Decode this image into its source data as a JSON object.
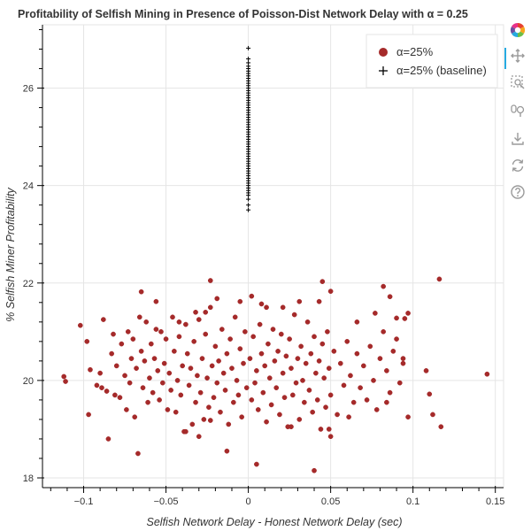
{
  "chart_data": {
    "type": "scatter",
    "title": "Profitability of Selfish Mining in Presence of Poisson-Dist Network Delay with α = 0.25",
    "xlabel": "Selfish Network Delay - Honest Network Delay (sec)",
    "ylabel": "% Selfish Miner Profitability",
    "xlim": [
      -0.125,
      0.155
    ],
    "ylim": [
      17.8,
      27.3
    ],
    "xticks": [
      -0.1,
      -0.05,
      0,
      0.05,
      0.1,
      0.15
    ],
    "xtick_labels": [
      "−0.1",
      "−0.05",
      "0",
      "0.05",
      "0.1",
      "0.15"
    ],
    "yticks": [
      18,
      20,
      22,
      24,
      26
    ],
    "ytick_labels": [
      "18",
      "20",
      "22",
      "24",
      "26"
    ],
    "grid": true,
    "legend_position": "top-right",
    "series": [
      {
        "name": "α=25%",
        "marker": "circle",
        "color": "#a52a2a",
        "points": [
          [
            -0.112,
            20.08
          ],
          [
            -0.111,
            19.98
          ],
          [
            -0.102,
            21.13
          ],
          [
            -0.098,
            20.8
          ],
          [
            -0.097,
            19.3
          ],
          [
            -0.096,
            20.22
          ],
          [
            -0.092,
            19.9
          ],
          [
            -0.09,
            20.15
          ],
          [
            -0.089,
            19.85
          ],
          [
            -0.088,
            21.25
          ],
          [
            -0.086,
            19.78
          ],
          [
            -0.085,
            18.8
          ],
          [
            -0.083,
            20.55
          ],
          [
            -0.082,
            20.95
          ],
          [
            -0.081,
            19.7
          ],
          [
            -0.08,
            20.3
          ],
          [
            -0.078,
            19.65
          ],
          [
            -0.077,
            20.75
          ],
          [
            -0.075,
            20.1
          ],
          [
            -0.074,
            19.4
          ],
          [
            -0.073,
            21.0
          ],
          [
            -0.072,
            19.95
          ],
          [
            -0.071,
            20.45
          ],
          [
            -0.07,
            20.85
          ],
          [
            -0.069,
            19.25
          ],
          [
            -0.068,
            20.25
          ],
          [
            -0.067,
            18.5
          ],
          [
            -0.066,
            21.3
          ],
          [
            -0.065,
            20.6
          ],
          [
            -0.064,
            19.85
          ],
          [
            -0.063,
            20.4
          ],
          [
            -0.062,
            21.2
          ],
          [
            -0.061,
            19.55
          ],
          [
            -0.06,
            20.05
          ],
          [
            -0.059,
            20.75
          ],
          [
            -0.058,
            19.75
          ],
          [
            -0.057,
            20.45
          ],
          [
            -0.056,
            21.05
          ],
          [
            -0.055,
            20.2
          ],
          [
            -0.054,
            19.6
          ],
          [
            -0.053,
            21.0
          ],
          [
            -0.052,
            19.95
          ],
          [
            -0.051,
            20.35
          ],
          [
            -0.05,
            20.85
          ],
          [
            -0.049,
            19.4
          ],
          [
            -0.048,
            20.15
          ],
          [
            -0.047,
            19.8
          ],
          [
            -0.046,
            21.3
          ],
          [
            -0.045,
            20.6
          ],
          [
            -0.044,
            19.35
          ],
          [
            -0.043,
            20.0
          ],
          [
            -0.042,
            20.9
          ],
          [
            -0.041,
            19.7
          ],
          [
            -0.04,
            20.3
          ],
          [
            -0.039,
            18.95
          ],
          [
            -0.038,
            21.15
          ],
          [
            -0.037,
            20.55
          ],
          [
            -0.036,
            19.9
          ],
          [
            -0.035,
            20.25
          ],
          [
            -0.034,
            19.1
          ],
          [
            -0.033,
            20.8
          ],
          [
            -0.032,
            19.55
          ],
          [
            -0.031,
            20.1
          ],
          [
            -0.03,
            21.25
          ],
          [
            -0.029,
            19.75
          ],
          [
            -0.028,
            20.45
          ],
          [
            -0.027,
            19.2
          ],
          [
            -0.026,
            20.95
          ],
          [
            -0.025,
            20.05
          ],
          [
            -0.024,
            19.45
          ],
          [
            -0.023,
            21.5
          ],
          [
            -0.022,
            20.3
          ],
          [
            -0.021,
            19.65
          ],
          [
            -0.02,
            20.7
          ],
          [
            -0.019,
            19.95
          ],
          [
            -0.018,
            20.4
          ],
          [
            -0.017,
            19.35
          ],
          [
            -0.016,
            21.05
          ],
          [
            -0.015,
            20.15
          ],
          [
            -0.014,
            19.8
          ],
          [
            -0.013,
            20.55
          ],
          [
            -0.012,
            19.1
          ],
          [
            -0.011,
            20.85
          ],
          [
            -0.01,
            20.25
          ],
          [
            -0.009,
            19.55
          ],
          [
            -0.008,
            21.3
          ],
          [
            -0.007,
            20.0
          ],
          [
            -0.006,
            19.7
          ],
          [
            -0.005,
            20.65
          ],
          [
            -0.004,
            19.25
          ],
          [
            -0.003,
            20.35
          ],
          [
            -0.002,
            21.0
          ],
          [
            -0.001,
            19.85
          ],
          [
            0.001,
            20.45
          ],
          [
            0.002,
            19.6
          ],
          [
            0.003,
            20.9
          ],
          [
            0.004,
            19.95
          ],
          [
            0.005,
            20.2
          ],
          [
            0.006,
            19.4
          ],
          [
            0.007,
            21.15
          ],
          [
            0.008,
            20.55
          ],
          [
            0.009,
            19.75
          ],
          [
            0.01,
            20.3
          ],
          [
            0.011,
            19.15
          ],
          [
            0.012,
            20.75
          ],
          [
            0.013,
            20.05
          ],
          [
            0.014,
            19.5
          ],
          [
            0.015,
            21.05
          ],
          [
            0.016,
            20.4
          ],
          [
            0.017,
            19.85
          ],
          [
            0.018,
            20.6
          ],
          [
            0.019,
            19.3
          ],
          [
            0.02,
            20.95
          ],
          [
            0.021,
            20.15
          ],
          [
            0.022,
            19.65
          ],
          [
            0.023,
            20.5
          ],
          [
            0.024,
            19.05
          ],
          [
            0.025,
            20.85
          ],
          [
            0.026,
            20.25
          ],
          [
            0.027,
            19.7
          ],
          [
            0.028,
            21.35
          ],
          [
            0.029,
            19.95
          ],
          [
            0.03,
            20.45
          ],
          [
            0.031,
            19.2
          ],
          [
            0.032,
            20.7
          ],
          [
            0.033,
            20.0
          ],
          [
            0.034,
            19.55
          ],
          [
            0.035,
            20.35
          ],
          [
            0.036,
            21.2
          ],
          [
            0.037,
            19.8
          ],
          [
            0.038,
            20.55
          ],
          [
            0.039,
            19.35
          ],
          [
            0.04,
            20.9
          ],
          [
            0.041,
            20.15
          ],
          [
            0.042,
            19.6
          ],
          [
            0.043,
            20.4
          ],
          [
            0.044,
            19.0
          ],
          [
            0.045,
            20.75
          ],
          [
            0.046,
            20.05
          ],
          [
            0.047,
            19.45
          ],
          [
            0.048,
            21.0
          ],
          [
            0.049,
            20.25
          ],
          [
            0.05,
            19.7
          ],
          [
            0.052,
            20.6
          ],
          [
            0.054,
            19.3
          ],
          [
            0.056,
            20.35
          ],
          [
            0.058,
            19.9
          ],
          [
            0.06,
            20.8
          ],
          [
            0.062,
            20.1
          ],
          [
            0.064,
            19.55
          ],
          [
            0.066,
            20.55
          ],
          [
            0.068,
            19.85
          ],
          [
            0.07,
            20.3
          ],
          [
            0.072,
            19.6
          ],
          [
            0.074,
            20.7
          ],
          [
            0.076,
            20.0
          ],
          [
            0.078,
            19.4
          ],
          [
            0.08,
            20.45
          ],
          [
            0.082,
            21.0
          ],
          [
            0.084,
            20.2
          ],
          [
            0.086,
            19.75
          ],
          [
            0.088,
            20.6
          ],
          [
            0.09,
            20.85
          ],
          [
            0.092,
            19.95
          ],
          [
            0.094,
            20.35
          ],
          [
            -0.065,
            21.82
          ],
          [
            -0.056,
            21.62
          ],
          [
            -0.042,
            21.2
          ],
          [
            -0.032,
            21.4
          ],
          [
            -0.026,
            21.4
          ],
          [
            -0.023,
            22.05
          ],
          [
            -0.019,
            21.68
          ],
          [
            -0.005,
            21.62
          ],
          [
            0.002,
            21.73
          ],
          [
            0.008,
            21.57
          ],
          [
            0.011,
            21.5
          ],
          [
            0.021,
            21.5
          ],
          [
            0.031,
            21.62
          ],
          [
            0.043,
            21.62
          ],
          [
            0.045,
            22.03
          ],
          [
            0.05,
            21.83
          ],
          [
            0.066,
            21.2
          ],
          [
            0.082,
            21.93
          ],
          [
            0.077,
            21.38
          ],
          [
            0.086,
            21.72
          ],
          [
            0.095,
            21.27
          ],
          [
            0.097,
            21.38
          ],
          [
            0.09,
            21.28
          ],
          [
            0.116,
            22.08
          ],
          [
            -0.038,
            18.95
          ],
          [
            -0.03,
            18.85
          ],
          [
            -0.013,
            18.55
          ],
          [
            0.005,
            18.28
          ],
          [
            0.04,
            18.15
          ],
          [
            0.05,
            18.85
          ],
          [
            0.049,
            19.0
          ],
          [
            -0.023,
            19.18
          ],
          [
            0.026,
            19.05
          ],
          [
            0.061,
            19.25
          ],
          [
            0.108,
            20.2
          ],
          [
            0.11,
            19.72
          ],
          [
            0.112,
            19.3
          ],
          [
            0.117,
            19.05
          ],
          [
            0.145,
            20.13
          ],
          [
            0.094,
            20.45
          ],
          [
            0.084,
            19.55
          ],
          [
            0.097,
            19.25
          ]
        ]
      },
      {
        "name": "α=25% (baseline)",
        "marker": "cross",
        "color": "#000000",
        "points": [
          [
            0,
            26.82
          ],
          [
            0,
            26.6
          ],
          [
            0,
            26.52
          ],
          [
            0,
            26.45
          ],
          [
            0,
            26.4
          ],
          [
            0,
            26.35
          ],
          [
            0,
            26.3
          ],
          [
            0,
            26.25
          ],
          [
            0,
            26.2
          ],
          [
            0,
            26.15
          ],
          [
            0,
            26.1
          ],
          [
            0,
            26.05
          ],
          [
            0,
            26.0
          ],
          [
            0,
            25.95
          ],
          [
            0,
            25.9
          ],
          [
            0,
            25.85
          ],
          [
            0,
            25.8
          ],
          [
            0,
            25.75
          ],
          [
            0,
            25.7
          ],
          [
            0,
            25.65
          ],
          [
            0,
            25.6
          ],
          [
            0,
            25.55
          ],
          [
            0,
            25.5
          ],
          [
            0,
            25.45
          ],
          [
            0,
            25.4
          ],
          [
            0,
            25.35
          ],
          [
            0,
            25.3
          ],
          [
            0,
            25.25
          ],
          [
            0,
            25.2
          ],
          [
            0,
            25.15
          ],
          [
            0,
            25.1
          ],
          [
            0,
            25.05
          ],
          [
            0,
            25.0
          ],
          [
            0,
            24.95
          ],
          [
            0,
            24.9
          ],
          [
            0,
            24.85
          ],
          [
            0,
            24.8
          ],
          [
            0,
            24.75
          ],
          [
            0,
            24.7
          ],
          [
            0,
            24.65
          ],
          [
            0,
            24.6
          ],
          [
            0,
            24.55
          ],
          [
            0,
            24.5
          ],
          [
            0,
            24.45
          ],
          [
            0,
            24.4
          ],
          [
            0,
            24.35
          ],
          [
            0,
            24.3
          ],
          [
            0,
            24.25
          ],
          [
            0,
            24.2
          ],
          [
            0,
            24.15
          ],
          [
            0,
            24.1
          ],
          [
            0,
            24.05
          ],
          [
            0,
            24.0
          ],
          [
            0,
            23.95
          ],
          [
            0,
            23.9
          ],
          [
            0,
            23.85
          ],
          [
            0,
            23.8
          ],
          [
            0,
            23.72
          ],
          [
            0,
            23.6
          ],
          [
            0,
            23.5
          ]
        ]
      }
    ]
  },
  "toolbar": {
    "tools": [
      {
        "name": "bokeh-logo",
        "icon": "bokeh-logo-icon"
      },
      {
        "name": "pan-tool",
        "icon": "pan-icon"
      },
      {
        "name": "box-zoom-tool",
        "icon": "box-zoom-icon"
      },
      {
        "name": "wheel-zoom-tool",
        "icon": "wheel-zoom-icon"
      },
      {
        "name": "save-tool",
        "icon": "save-icon"
      },
      {
        "name": "reset-tool",
        "icon": "reset-icon"
      },
      {
        "name": "help-tool",
        "icon": "help-icon"
      }
    ],
    "active_color": "#26aae1"
  }
}
